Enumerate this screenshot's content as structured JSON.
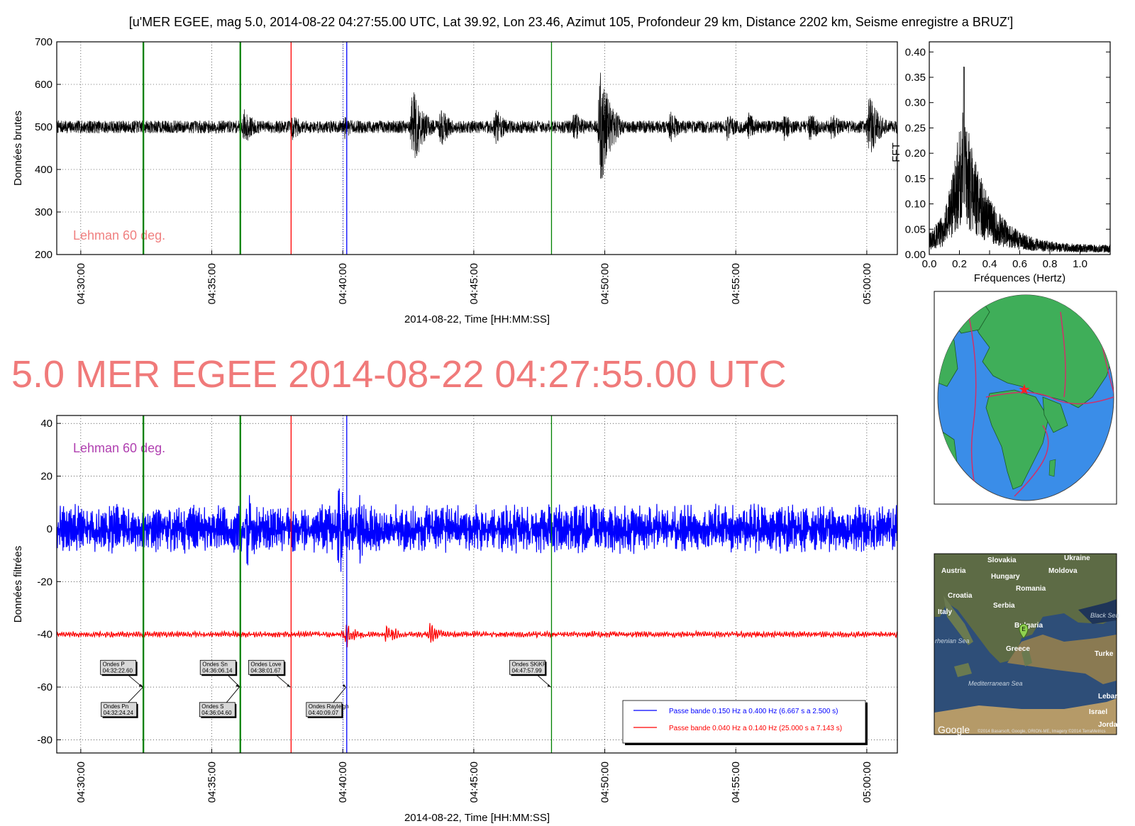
{
  "page": {
    "title": "[u'MER EGEE, mag 5.0, 2014-08-22 04:27:55.00 UTC, Lat 39.92, Lon 23.46, Azimut 105, Profondeur 29 km, Distance 2202 km, Seisme enregistre a BRUZ']",
    "headline": "5.0 MER EGEE 2014-08-22 04:27:55.00 UTC"
  },
  "colors": {
    "raw": "#000000",
    "blue": "#0000ff",
    "red": "#ff0000",
    "green": "#008000",
    "headline": "#f07a7a",
    "lehman_raw": "#f08080",
    "lehman_filtered": "#b040b0"
  },
  "chart_data": [
    {
      "id": "raw",
      "type": "line",
      "title": "",
      "xlabel": "2014-08-22, Time [HH:MM:SS]",
      "ylabel": "Données brutes",
      "xlim": [
        "04:29:05",
        "05:01:10"
      ],
      "ylim": [
        200,
        700
      ],
      "yticks": [
        200,
        300,
        400,
        500,
        600,
        700
      ],
      "xticks": [
        "04:30:00",
        "04:35:00",
        "04:40:00",
        "04:45:00",
        "04:50:00",
        "04:55:00",
        "05:00:00"
      ],
      "grid": true,
      "annotation_text": "Lehman 60 deg.",
      "baseline": 500,
      "noise_amplitude": 15,
      "bursts": [
        {
          "time": "04:36:15",
          "amplitude": 45
        },
        {
          "time": "04:38:05",
          "amplitude": 35
        },
        {
          "time": "04:40:05",
          "amplitude": 30
        },
        {
          "time": "04:42:40",
          "amplitude": 105
        },
        {
          "time": "04:43:45",
          "amplitude": 50
        },
        {
          "time": "04:45:50",
          "amplitude": 45
        },
        {
          "time": "04:48:50",
          "amplitude": 40
        },
        {
          "time": "04:49:50",
          "amplitude": 150
        },
        {
          "time": "04:52:30",
          "amplitude": 40
        },
        {
          "time": "04:54:40",
          "amplitude": 35
        },
        {
          "time": "04:55:30",
          "amplitude": 35
        },
        {
          "time": "04:56:50",
          "amplitude": 35
        },
        {
          "time": "04:57:50",
          "amplitude": 40
        },
        {
          "time": "04:58:40",
          "amplitude": 35
        },
        {
          "time": "05:00:05",
          "amplitude": 80
        }
      ]
    },
    {
      "id": "fft",
      "type": "line",
      "xlabel": "Fréquences (Hertz)",
      "ylabel": "FFT",
      "xlim": [
        0.0,
        1.2
      ],
      "ylim": [
        0.0,
        0.42
      ],
      "xticks": [
        "0.0",
        "0.2",
        "0.4",
        "0.6",
        "0.8",
        "1.0"
      ],
      "yticks": [
        "0.00",
        "0.05",
        "0.10",
        "0.15",
        "0.20",
        "0.25",
        "0.30",
        "0.35",
        "0.40"
      ],
      "peak_frequency": 0.23,
      "peak_value": 0.37
    },
    {
      "id": "filtered",
      "type": "line",
      "xlabel": "2014-08-22, Time [HH:MM:SS]",
      "ylabel": "Données filtrées",
      "xlim": [
        "04:29:05",
        "05:01:10"
      ],
      "ylim": [
        -85,
        43
      ],
      "yticks": [
        -80,
        -60,
        -40,
        -20,
        0,
        20,
        40
      ],
      "xticks": [
        "04:30:00",
        "04:35:00",
        "04:40:00",
        "04:45:00",
        "04:50:00",
        "04:55:00",
        "05:00:00"
      ],
      "grid": true,
      "annotation_text": "Lehman 60 deg.",
      "series": [
        {
          "name": "Passe bande 0.150 Hz a 0.400 Hz (6.667 s a 2.500 s)",
          "color": "#0000ff",
          "offset": 0,
          "noise_amplitude": 8,
          "bursts": [
            {
              "time": "04:36:20",
              "amplitude": 14
            },
            {
              "time": "04:39:50",
              "amplitude": 18
            },
            {
              "time": "04:40:40",
              "amplitude": 14
            }
          ]
        },
        {
          "name": "Passe bande 0.040 Hz a 0.140 Hz (25.000 s a 7.143 s)",
          "color": "#ff0000",
          "offset": -40,
          "noise_amplitude": 1,
          "bursts": [
            {
              "time": "04:40:05",
              "amplitude": 6
            },
            {
              "time": "04:41:40",
              "amplitude": 5
            },
            {
              "time": "04:43:20",
              "amplitude": 4
            }
          ]
        }
      ],
      "legend_position": "lower-right"
    }
  ],
  "phases": [
    {
      "label": "Ondes P",
      "time": "04:32:22.60",
      "color": "#008000"
    },
    {
      "label": "Ondes Pn",
      "time": "04:32:24.24",
      "color": "#008000"
    },
    {
      "label": "Ondes S",
      "time": "04:36:04.60",
      "color": "#008000"
    },
    {
      "label": "Ondes Sn",
      "time": "04:36:06.14",
      "color": "#008000"
    },
    {
      "label": "Ondes Love",
      "time": "04:38:01.67",
      "color": "#ff0000"
    },
    {
      "label": "Ondes Rayleigh",
      "time": "04:40:09.07",
      "color": "#0000ff"
    },
    {
      "label": "Ondes SKiKP",
      "time": "04:47:57.99",
      "color": "#008000"
    }
  ],
  "map": {
    "labels": [
      "Slovakia",
      "Ukraine",
      "Austria",
      "Hungary",
      "Moldova",
      "Romania",
      "Croatia",
      "Serbia",
      "Italy",
      "Bulgaria",
      "Greece",
      "Turke",
      "Lebar",
      "Israel",
      "Jorda"
    ],
    "sea_labels": [
      "Black Sea",
      "rhenian Sea",
      "Mediterranean Sea"
    ],
    "attribution": "Google",
    "attribution_small": "©2014 Basarsoft, Google, ORION-ME, Imagery ©2014 TerraMetrics",
    "marker": "E"
  }
}
